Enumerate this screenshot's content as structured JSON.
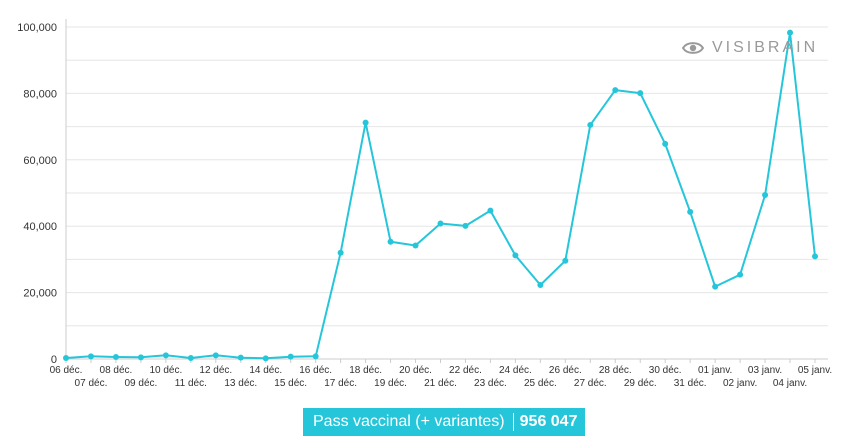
{
  "chart_data": {
    "type": "line",
    "color": "#26c6da",
    "x": [
      "06 déc.",
      "07 déc.",
      "08 déc.",
      "09 déc.",
      "10 déc.",
      "11 déc.",
      "12 déc.",
      "13 déc.",
      "14 déc.",
      "15 déc.",
      "16 déc.",
      "17 déc.",
      "18 déc.",
      "19 déc.",
      "20 déc.",
      "21 déc.",
      "22 déc.",
      "23 déc.",
      "24 déc.",
      "25 déc.",
      "26 déc.",
      "27 déc.",
      "28 déc.",
      "29 déc.",
      "30 déc.",
      "31 déc.",
      "01 janv.",
      "02 janv.",
      "03 janv.",
      "04 janv.",
      "05 janv."
    ],
    "series": [
      {
        "name": "Pass vaccinal (+ variantes)",
        "values": [
          300,
          800,
          600,
          500,
          1100,
          300,
          1100,
          400,
          200,
          700,
          800,
          32000,
          71200,
          35300,
          34200,
          40800,
          40100,
          44700,
          31200,
          22300,
          29600,
          70500,
          81000,
          80100,
          64800,
          44300,
          21800,
          25400,
          49400,
          98300,
          30900
        ]
      }
    ],
    "y_ticks": [
      "0",
      "20,000",
      "40,000",
      "60,000",
      "80,000",
      "100,000"
    ],
    "ylim": [
      0,
      100000
    ],
    "grid": true
  },
  "watermark": {
    "text": "VISIBRAIN",
    "icon": "eye-icon"
  },
  "legend": {
    "label": "Pass vaccinal (+ variantes)",
    "total": "956 047",
    "color": "#26c6da"
  }
}
